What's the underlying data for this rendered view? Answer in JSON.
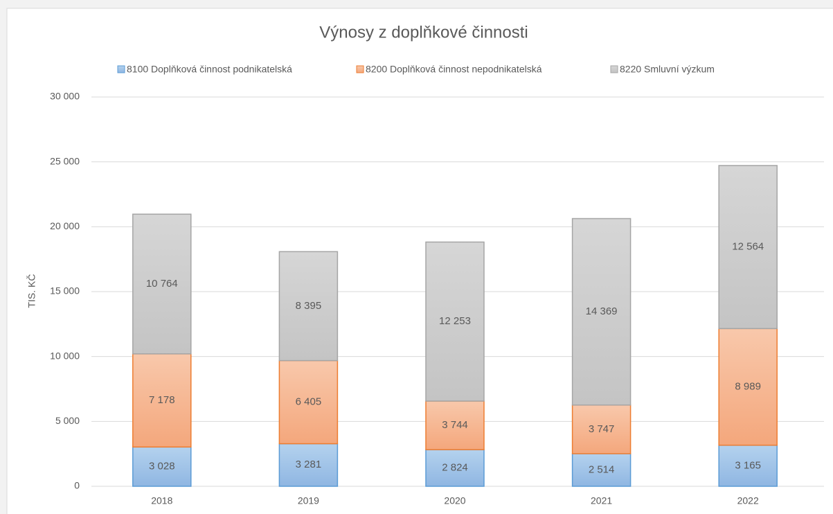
{
  "chart_data": {
    "type": "stacked_bar",
    "title": "Výnosy z doplňkové činnosti",
    "y_label": "TIS. KČ",
    "categories": [
      "2018",
      "2019",
      "2020",
      "2021",
      "2022"
    ],
    "series": [
      {
        "name": "8100 Doplňková činnost podnikatelská",
        "color": "#9dc3e6",
        "values": [
          3028,
          3281,
          2824,
          2514,
          3165
        ],
        "value_labels": [
          "3 028",
          "3 281",
          "2 824",
          "2 514",
          "3 165"
        ]
      },
      {
        "name": "8200 Doplňková činnost nepodnikatelská",
        "color": "#f4b183",
        "values": [
          7178,
          6405,
          3744,
          3747,
          8989
        ],
        "value_labels": [
          "7 178",
          "6 405",
          "3 744",
          "3 747",
          "8 989"
        ]
      },
      {
        "name": "8220 Smluvní výzkum",
        "color": "#c9c9c9",
        "values": [
          10764,
          8395,
          12253,
          14369,
          12564
        ],
        "value_labels": [
          "10 764",
          "8 395",
          "12 253",
          "14 369",
          "12 564"
        ]
      }
    ],
    "ylim": [
      0,
      30000
    ],
    "yticks": [
      0,
      {
        "value": 5000,
        "label": "5 000"
      },
      {
        "value": 10000,
        "label": "10 000"
      },
      {
        "value": 15000,
        "label": "15 000"
      },
      {
        "value": 20000,
        "label": "20 000"
      },
      {
        "value": 25000,
        "label": "25 000"
      },
      {
        "value": 30000,
        "label": "30 000"
      }
    ],
    "grid": true,
    "legend": "top"
  }
}
